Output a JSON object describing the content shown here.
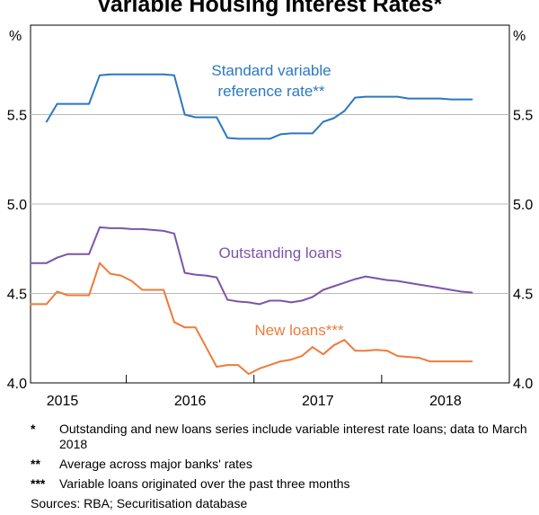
{
  "chart_data": {
    "type": "line",
    "title": "Variable Housing Interest Rates*",
    "ylabel_left": "%",
    "ylabel_right": "%",
    "ylim": [
      4.0,
      6.0
    ],
    "yticks": [
      "4.0",
      "4.5",
      "5.0",
      "5.5"
    ],
    "xlim": [
      2014.75,
      2018.5
    ],
    "xticks": [
      {
        "label": "2015",
        "pos": 2015.0
      },
      {
        "label": "2016",
        "pos": 2016.0
      },
      {
        "label": "2017",
        "pos": 2017.0
      },
      {
        "label": "2018",
        "pos": 2018.0
      }
    ],
    "year_dividers": [
      2015.5,
      2016.5,
      2017.5
    ],
    "series": [
      {
        "name": "Standard variable reference rate**",
        "label_lines": [
          "Standard variable",
          "reference rate**"
        ],
        "color": "#2b78c2",
        "x": [
          2014.875,
          2014.958,
          2015.042,
          2015.125,
          2015.208,
          2015.292,
          2015.375,
          2015.458,
          2015.542,
          2015.625,
          2015.708,
          2015.792,
          2015.875,
          2015.958,
          2016.042,
          2016.125,
          2016.208,
          2016.292,
          2016.375,
          2016.458,
          2016.542,
          2016.625,
          2016.708,
          2016.792,
          2016.875,
          2016.958,
          2017.042,
          2017.125,
          2017.208,
          2017.292,
          2017.375,
          2017.458,
          2017.542,
          2017.625,
          2017.708,
          2017.792,
          2017.875,
          2017.958,
          2018.042,
          2018.125,
          2018.208
        ],
        "values": [
          5.46,
          5.56,
          5.56,
          5.56,
          5.56,
          5.72,
          5.725,
          5.725,
          5.725,
          5.725,
          5.725,
          5.725,
          5.72,
          5.5,
          5.485,
          5.485,
          5.485,
          5.37,
          5.365,
          5.365,
          5.365,
          5.365,
          5.39,
          5.395,
          5.395,
          5.395,
          5.46,
          5.48,
          5.52,
          5.595,
          5.6,
          5.6,
          5.6,
          5.6,
          5.59,
          5.59,
          5.59,
          5.59,
          5.585,
          5.585,
          5.585
        ]
      },
      {
        "name": "Outstanding loans",
        "label_lines": [
          "Outstanding loans"
        ],
        "color": "#7b55a8",
        "x": [
          2014.75,
          2014.875,
          2014.958,
          2015.042,
          2015.125,
          2015.208,
          2015.292,
          2015.375,
          2015.458,
          2015.542,
          2015.625,
          2015.708,
          2015.792,
          2015.875,
          2015.958,
          2016.042,
          2016.125,
          2016.208,
          2016.292,
          2016.375,
          2016.458,
          2016.542,
          2016.625,
          2016.708,
          2016.792,
          2016.875,
          2016.958,
          2017.042,
          2017.125,
          2017.208,
          2017.292,
          2017.375,
          2017.458,
          2017.542,
          2017.625,
          2017.708,
          2017.792,
          2017.875,
          2017.958,
          2018.042,
          2018.125,
          2018.208
        ],
        "values": [
          4.67,
          4.67,
          4.7,
          4.72,
          4.72,
          4.72,
          4.87,
          4.865,
          4.865,
          4.86,
          4.86,
          4.855,
          4.85,
          4.835,
          4.615,
          4.605,
          4.6,
          4.59,
          4.465,
          4.455,
          4.45,
          4.44,
          4.46,
          4.46,
          4.45,
          4.46,
          4.48,
          4.52,
          4.54,
          4.56,
          4.58,
          4.595,
          4.585,
          4.575,
          4.57,
          4.56,
          4.55,
          4.54,
          4.53,
          4.52,
          4.51,
          4.505
        ]
      },
      {
        "name": "New loans***",
        "label_lines": [
          "New loans***"
        ],
        "color": "#ee7b3a",
        "x": [
          2014.75,
          2014.875,
          2014.958,
          2015.042,
          2015.125,
          2015.208,
          2015.292,
          2015.375,
          2015.458,
          2015.542,
          2015.625,
          2015.708,
          2015.792,
          2015.875,
          2015.958,
          2016.042,
          2016.125,
          2016.208,
          2016.292,
          2016.375,
          2016.458,
          2016.542,
          2016.625,
          2016.708,
          2016.792,
          2016.875,
          2016.958,
          2017.042,
          2017.125,
          2017.208,
          2017.292,
          2017.375,
          2017.458,
          2017.542,
          2017.625,
          2017.708,
          2017.792,
          2017.875,
          2017.958,
          2018.042,
          2018.125,
          2018.208
        ],
        "values": [
          4.44,
          4.44,
          4.51,
          4.49,
          4.49,
          4.49,
          4.67,
          4.61,
          4.6,
          4.57,
          4.52,
          4.52,
          4.52,
          4.34,
          4.31,
          4.31,
          4.2,
          4.09,
          4.1,
          4.1,
          4.05,
          4.08,
          4.1,
          4.12,
          4.13,
          4.15,
          4.2,
          4.16,
          4.21,
          4.24,
          4.18,
          4.18,
          4.185,
          4.18,
          4.15,
          4.145,
          4.14,
          4.12,
          4.12,
          4.12,
          4.12,
          4.12
        ]
      }
    ]
  },
  "notes": [
    {
      "mark": "*",
      "text": "Outstanding and new loans series include variable interest rate loans; data to March 2018"
    },
    {
      "mark": "**",
      "text": "Average across major banks' rates"
    },
    {
      "mark": "***",
      "text": "Variable loans originated over the past three months"
    }
  ],
  "source": "Sources: RBA; Securitisation database"
}
